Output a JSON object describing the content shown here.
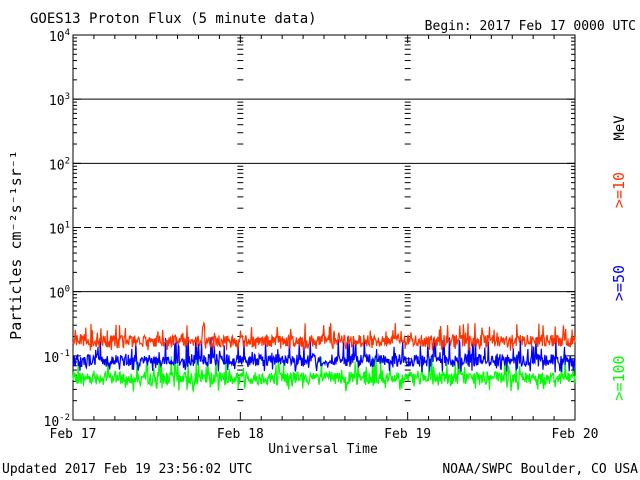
{
  "header": {
    "title": "GOES13 Proton Flux (5 minute data)",
    "begin": "Begin: 2017 Feb 17 0000 UTC"
  },
  "footer": {
    "updated": "Updated 2017 Feb 19 23:56:02 UTC",
    "source": "NOAA/SWPC Boulder, CO USA"
  },
  "chart_data": {
    "type": "line",
    "title": "GOES13 Proton Flux (5 minute data)",
    "xlabel": "Universal Time",
    "ylabel": "Particles cm⁻²s⁻¹sr⁻¹",
    "yscale": "log",
    "ylim": [
      0.01,
      10000
    ],
    "xlim": [
      "2017-02-17 00:00",
      "2017-02-20 00:00"
    ],
    "x_ticks": [
      "Feb 17",
      "Feb 18",
      "Feb 19",
      "Feb 20"
    ],
    "y_ticks": [
      {
        "base": "10",
        "exp": "4"
      },
      {
        "base": "10",
        "exp": "3"
      },
      {
        "base": "10",
        "exp": "2"
      },
      {
        "base": "10",
        "exp": "1"
      },
      {
        "base": "10",
        "exp": "0"
      },
      {
        "base": "10",
        "exp": "-1"
      },
      {
        "base": "10",
        "exp": "-2"
      }
    ],
    "threshold_lines": [
      1000,
      100,
      10,
      1
    ],
    "grid": "dotted daily markers",
    "legend_placement": "right (vertical)",
    "legend_unit": "MeV",
    "series": [
      {
        "name": ">=10",
        "color": "#ff3300",
        "level": 0.17,
        "low": 0.12,
        "high": 0.33
      },
      {
        "name": ">=50",
        "color": "#0000ff",
        "level": 0.085,
        "low": 0.055,
        "high": 0.2
      },
      {
        "name": ">=100",
        "color": "#00ff00",
        "level": 0.045,
        "low": 0.028,
        "high": 0.1
      }
    ]
  }
}
